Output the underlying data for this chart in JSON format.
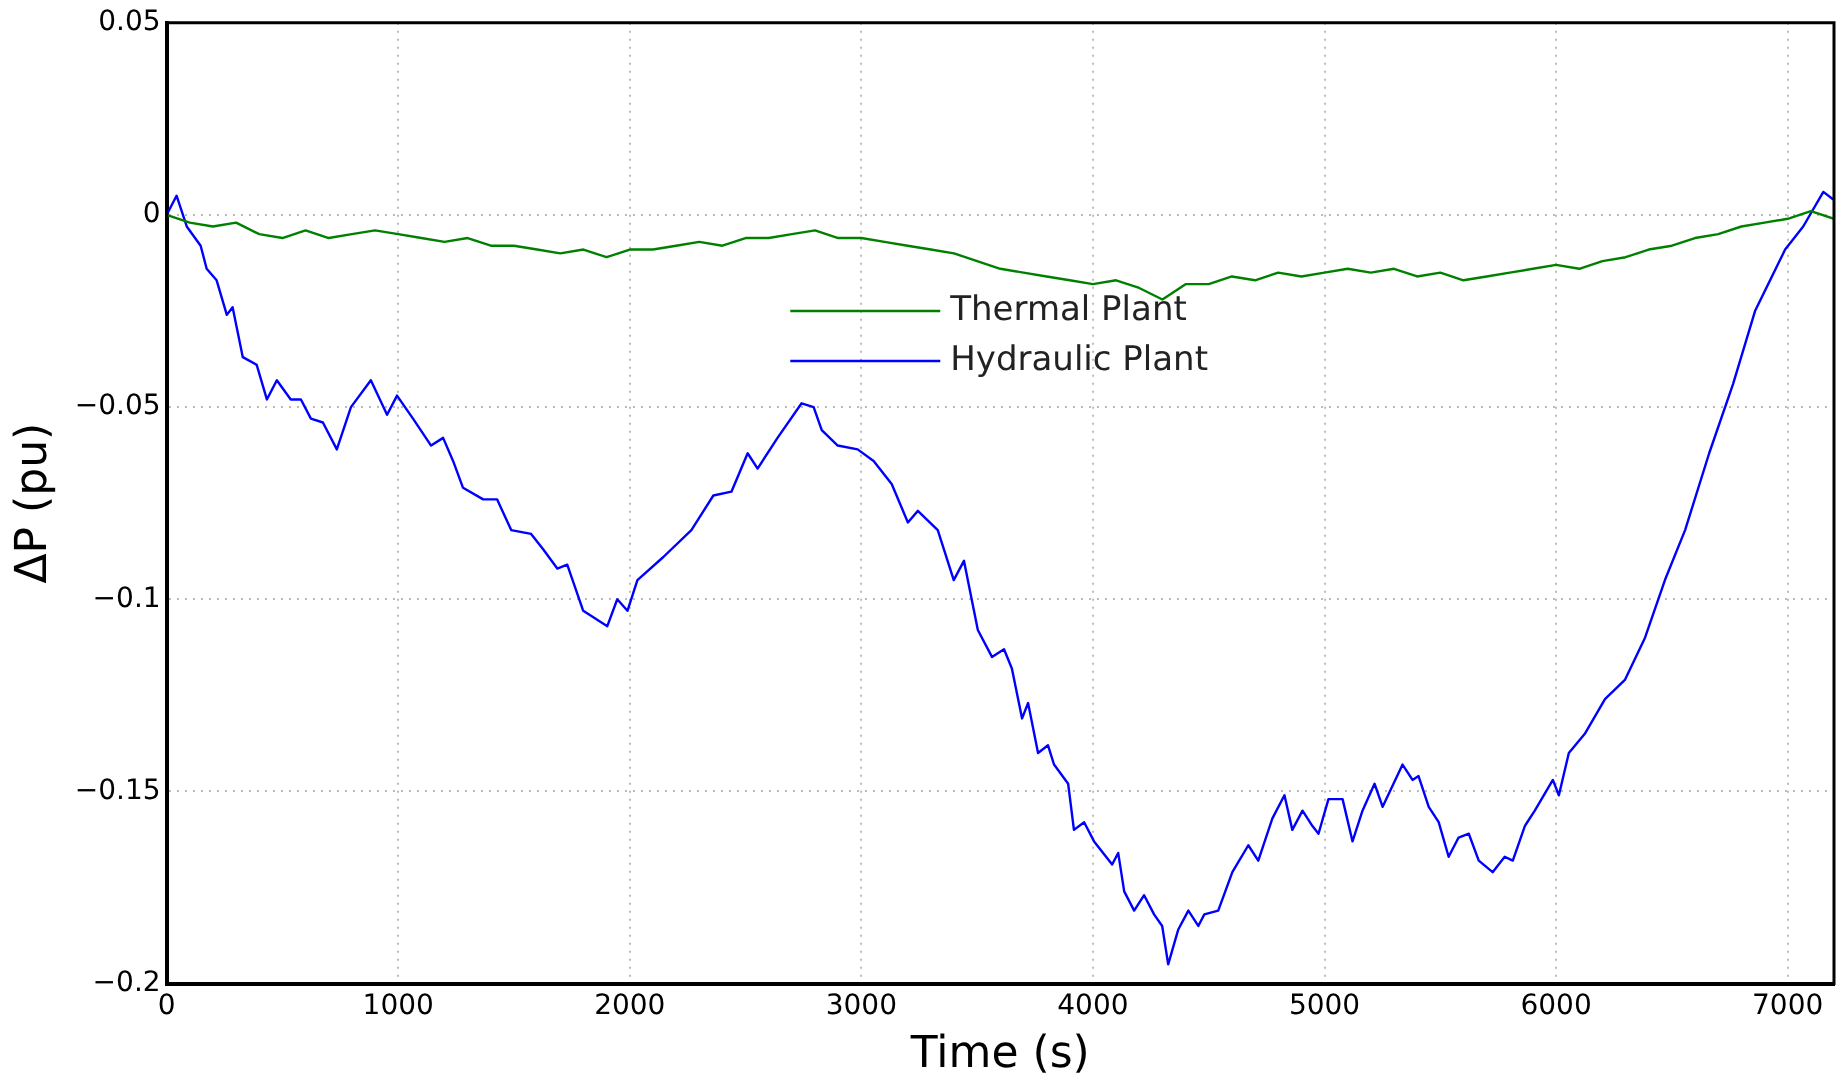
{
  "chart_data": {
    "type": "line",
    "xlabel": "Time (s)",
    "ylabel": "ΔP (pu)",
    "xlim": [
      0,
      7200
    ],
    "xticks": [
      0,
      1000,
      2000,
      3000,
      4000,
      5000,
      6000,
      7000
    ],
    "ylim": [
      -0.2,
      0.05
    ],
    "yticks": [
      {
        "value": -0.2,
        "label": "−0.2"
      },
      {
        "value": -0.15,
        "label": "−0.15"
      },
      {
        "value": -0.1,
        "label": "−0.1"
      },
      {
        "value": -0.05,
        "label": "−0.05"
      },
      0,
      0.05
    ],
    "grid": true,
    "legend": "top",
    "marker": "none",
    "line_style": "solid",
    "series": [
      {
        "name": "Thermal Plant",
        "color": "#008000",
        "x": [
          0,
          100,
          200,
          300,
          400,
          500,
          600,
          700,
          800,
          900,
          1000,
          1100,
          1200,
          1300,
          1400,
          1500,
          1600,
          1700,
          1800,
          1900,
          2000,
          2100,
          2200,
          2300,
          2400,
          2500,
          2600,
          2700,
          2800,
          2900,
          3000,
          3100,
          3200,
          3300,
          3400,
          3500,
          3600,
          3700,
          3800,
          3900,
          4000,
          4100,
          4200,
          4300,
          4400,
          4500,
          4600,
          4700,
          4800,
          4900,
          5000,
          5100,
          5200,
          5300,
          5400,
          5500,
          5600,
          5700,
          5800,
          5900,
          6000,
          6100,
          6200,
          6300,
          6400,
          6500,
          6600,
          6700,
          6800,
          6900,
          7000,
          7100,
          7200
        ],
        "values": [
          0,
          -0.002,
          -0.003,
          -0.002,
          -0.005,
          -0.006,
          -0.004,
          -0.006,
          -0.005,
          -0.004,
          -0.005,
          -0.006,
          -0.007,
          -0.006,
          -0.008,
          -0.008,
          -0.009,
          -0.01,
          -0.009,
          -0.011,
          -0.009,
          -0.009,
          -0.008,
          -0.007,
          -0.008,
          -0.006,
          -0.006,
          -0.005,
          -0.004,
          -0.006,
          -0.006,
          -0.007,
          -0.008,
          -0.009,
          -0.01,
          -0.012,
          -0.014,
          -0.015,
          -0.016,
          -0.017,
          -0.018,
          -0.017,
          -0.019,
          -0.022,
          -0.018,
          -0.018,
          -0.016,
          -0.017,
          -0.015,
          -0.016,
          -0.015,
          -0.014,
          -0.015,
          -0.014,
          -0.016,
          -0.015,
          -0.017,
          -0.016,
          -0.015,
          -0.014,
          -0.013,
          -0.014,
          -0.012,
          -0.011,
          -0.009,
          -0.008,
          -0.006,
          -0.005,
          -0.003,
          -0.002,
          -0.001,
          0.001,
          -0.001
        ]
      },
      {
        "name": "Hydraulic Plant",
        "color": "#0000ff",
        "x": [
          0,
          43,
          87,
          147,
          173,
          216,
          260,
          285,
          329,
          389,
          433,
          476,
          536,
          580,
          623,
          675,
          735,
          796,
          882,
          952,
          995,
          1064,
          1142,
          1194,
          1237,
          1280,
          1367,
          1427,
          1488,
          1574,
          1626,
          1687,
          1730,
          1799,
          1903,
          1946,
          1990,
          2033,
          2145,
          2266,
          2361,
          2439,
          2509,
          2552,
          2638,
          2742,
          2794,
          2829,
          2898,
          2984,
          3053,
          3131,
          3201,
          3244,
          3330,
          3399,
          3443,
          3503,
          3564,
          3616,
          3650,
          3694,
          3720,
          3763,
          3806,
          3832,
          3893,
          3918,
          3962,
          4005,
          4083,
          4109,
          4135,
          4178,
          4221,
          4264,
          4299,
          4325,
          4368,
          4412,
          4455,
          4481,
          4541,
          4602,
          4671,
          4714,
          4775,
          4827,
          4861,
          4905,
          4948,
          4974,
          5017,
          5078,
          5121,
          5164,
          5216,
          5251,
          5337,
          5380,
          5406,
          5450,
          5493,
          5536,
          5579,
          5623,
          5666,
          5726,
          5778,
          5813,
          5865,
          5908,
          5986,
          6012,
          6055,
          6124,
          6211,
          6297,
          6384,
          6470,
          6557,
          6661,
          6764,
          6859,
          6989,
          7067,
          7154,
          7197
        ],
        "values": [
          0,
          0.005,
          -0.003,
          -0.008,
          -0.014,
          -0.017,
          -0.026,
          -0.024,
          -0.037,
          -0.039,
          -0.048,
          -0.043,
          -0.048,
          -0.048,
          -0.053,
          -0.054,
          -0.061,
          -0.05,
          -0.043,
          -0.052,
          -0.047,
          -0.053,
          -0.06,
          -0.058,
          -0.064,
          -0.071,
          -0.074,
          -0.074,
          -0.082,
          -0.083,
          -0.087,
          -0.092,
          -0.091,
          -0.103,
          -0.107,
          -0.1,
          -0.103,
          -0.095,
          -0.089,
          -0.082,
          -0.073,
          -0.072,
          -0.062,
          -0.066,
          -0.058,
          -0.049,
          -0.05,
          -0.056,
          -0.06,
          -0.061,
          -0.064,
          -0.07,
          -0.08,
          -0.077,
          -0.082,
          -0.095,
          -0.09,
          -0.108,
          -0.115,
          -0.113,
          -0.118,
          -0.131,
          -0.127,
          -0.14,
          -0.138,
          -0.143,
          -0.148,
          -0.16,
          -0.158,
          -0.163,
          -0.169,
          -0.166,
          -0.176,
          -0.181,
          -0.177,
          -0.182,
          -0.185,
          -0.195,
          -0.186,
          -0.181,
          -0.185,
          -0.182,
          -0.181,
          -0.171,
          -0.164,
          -0.168,
          -0.157,
          -0.151,
          -0.16,
          -0.155,
          -0.159,
          -0.161,
          -0.152,
          -0.152,
          -0.163,
          -0.155,
          -0.148,
          -0.154,
          -0.143,
          -0.147,
          -0.146,
          -0.154,
          -0.158,
          -0.167,
          -0.162,
          -0.161,
          -0.168,
          -0.171,
          -0.167,
          -0.168,
          -0.159,
          -0.155,
          -0.147,
          -0.151,
          -0.14,
          -0.135,
          -0.126,
          -0.121,
          -0.11,
          -0.095,
          -0.082,
          -0.062,
          -0.044,
          -0.025,
          -0.009,
          -0.003,
          0.006,
          0.004
        ]
      }
    ]
  }
}
